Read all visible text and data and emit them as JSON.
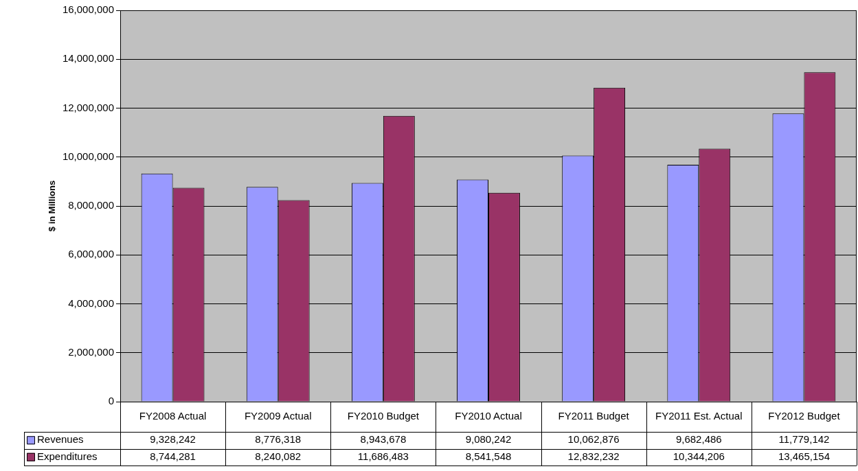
{
  "chart_data": {
    "type": "bar",
    "ylabel": "$ in Millions",
    "categories": [
      "FY2008 Actual",
      "FY2009 Actual",
      "FY2010 Budget",
      "FY2010 Actual",
      "FY2011 Budget",
      "FY2011 Est. Actual",
      "FY2012 Budget"
    ],
    "series": [
      {
        "name": "Revenues",
        "color": "#9999ff",
        "values": [
          9328242,
          8776318,
          8943678,
          9080242,
          10062876,
          9682486,
          11779142
        ],
        "value_labels": [
          "9,328,242",
          "8,776,318",
          "8,943,678",
          "9,080,242",
          "10,062,876",
          "9,682,486",
          "11,779,142"
        ]
      },
      {
        "name": "Expenditures",
        "color": "#993366",
        "values": [
          8744281,
          8240082,
          11686483,
          8541548,
          12832232,
          10344206,
          13465154
        ],
        "value_labels": [
          "8,744,281",
          "8,240,082",
          "11,686,483",
          "8,541,548",
          "12,832,232",
          "10,344,206",
          "13,465,154"
        ]
      }
    ],
    "ylim": [
      0,
      16000000
    ],
    "yticks": [
      0,
      {
        "value": 2000000,
        "label": "2,000,000"
      },
      {
        "value": 4000000,
        "label": "4,000,000"
      },
      {
        "value": 6000000,
        "label": "6,000,000"
      },
      {
        "value": 8000000,
        "label": "8,000,000"
      },
      {
        "value": 10000000,
        "label": "10,000,000"
      },
      {
        "value": 12000000,
        "label": "12,000,000"
      },
      {
        "value": 14000000,
        "label": "14,000,000"
      },
      {
        "value": 16000000,
        "label": "16,000,000"
      }
    ],
    "grid": "y",
    "legend": "bottom left"
  }
}
